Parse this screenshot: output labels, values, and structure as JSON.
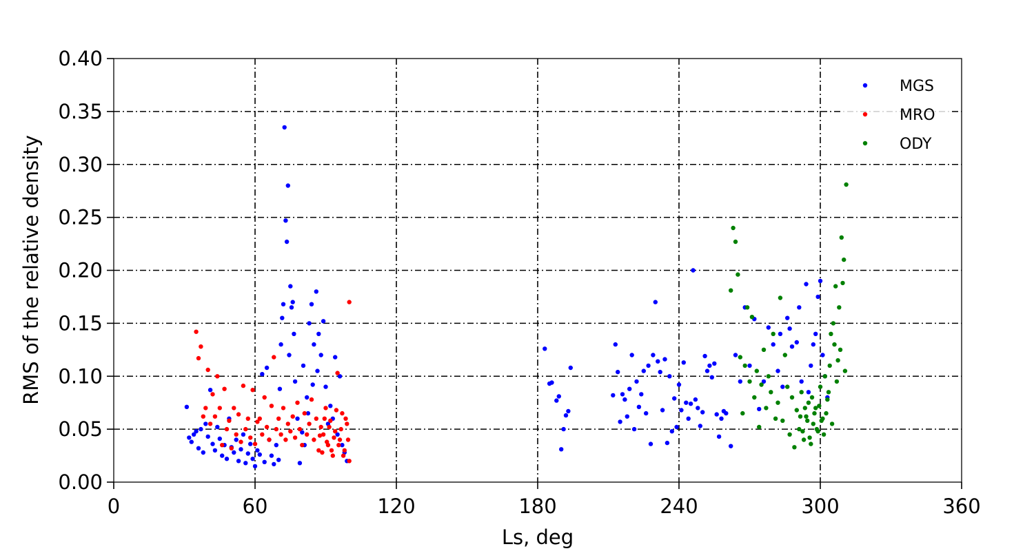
{
  "chart_data": {
    "type": "scatter",
    "xlabel": "Ls, deg",
    "ylabel": "RMS of the relative density",
    "xlim": [
      0,
      360
    ],
    "ylim": [
      0,
      0.4
    ],
    "x_ticks": [
      "0",
      "60",
      "120",
      "180",
      "240",
      "300",
      "360"
    ],
    "x_tick_values": [
      0,
      60,
      120,
      180,
      240,
      300,
      360
    ],
    "y_ticks": [
      "0.00",
      "0.05",
      "0.10",
      "0.15",
      "0.20",
      "0.25",
      "0.30",
      "0.35",
      "0.40"
    ],
    "y_tick_values": [
      0,
      0.05,
      0.1,
      0.15,
      0.2,
      0.25,
      0.3,
      0.35,
      0.4
    ],
    "grid": "dash-dot",
    "legend_position": "top-right",
    "series": [
      {
        "name": "MGS",
        "color": "#0000ff",
        "points": [
          [
            31,
            0.071
          ],
          [
            32,
            0.042
          ],
          [
            33,
            0.038
          ],
          [
            34,
            0.045
          ],
          [
            35,
            0.048
          ],
          [
            36,
            0.032
          ],
          [
            37,
            0.05
          ],
          [
            38,
            0.028
          ],
          [
            39,
            0.055
          ],
          [
            40,
            0.043
          ],
          [
            41,
            0.087
          ],
          [
            42,
            0.036
          ],
          [
            43,
            0.03
          ],
          [
            44,
            0.052
          ],
          [
            45,
            0.041
          ],
          [
            46,
            0.025
          ],
          [
            47,
            0.035
          ],
          [
            48,
            0.022
          ],
          [
            49,
            0.06
          ],
          [
            50,
            0.033
          ],
          [
            51,
            0.028
          ],
          [
            52,
            0.04
          ],
          [
            53,
            0.02
          ],
          [
            54,
            0.031
          ],
          [
            55,
            0.045
          ],
          [
            56,
            0.018
          ],
          [
            57,
            0.027
          ],
          [
            58,
            0.036
          ],
          [
            59,
            0.022
          ],
          [
            60,
            0.015
          ],
          [
            61,
            0.03
          ],
          [
            62,
            0.026
          ],
          [
            63,
            0.102
          ],
          [
            64,
            0.019
          ],
          [
            65,
            0.108
          ],
          [
            66,
            0.04
          ],
          [
            67,
            0.025
          ],
          [
            68,
            0.017
          ],
          [
            69,
            0.035
          ],
          [
            70,
            0.021
          ],
          [
            70.5,
            0.088
          ],
          [
            71,
            0.13
          ],
          [
            71.5,
            0.155
          ],
          [
            72,
            0.168
          ],
          [
            72.5,
            0.335
          ],
          [
            73,
            0.247
          ],
          [
            73.5,
            0.227
          ],
          [
            74,
            0.28
          ],
          [
            74.5,
            0.12
          ],
          [
            75,
            0.185
          ],
          [
            75.5,
            0.165
          ],
          [
            76,
            0.17
          ],
          [
            76.5,
            0.14
          ],
          [
            77,
            0.095
          ],
          [
            78,
            0.06
          ],
          [
            79,
            0.018
          ],
          [
            80,
            0.047
          ],
          [
            81,
            0.035
          ],
          [
            82,
            0.08
          ],
          [
            83,
            0.15
          ],
          [
            84,
            0.168
          ],
          [
            85,
            0.13
          ],
          [
            86,
            0.18
          ],
          [
            87,
            0.14
          ],
          [
            88,
            0.12
          ],
          [
            89,
            0.152
          ],
          [
            90,
            0.09
          ],
          [
            91,
            0.055
          ],
          [
            92,
            0.072
          ],
          [
            93,
            0.06
          ],
          [
            94,
            0.118
          ],
          [
            95,
            0.045
          ],
          [
            96,
            0.1
          ],
          [
            97,
            0.035
          ],
          [
            98,
            0.028
          ],
          [
            99,
            0.02
          ],
          [
            86.5,
            0.105
          ],
          [
            84.5,
            0.092
          ],
          [
            82.5,
            0.065
          ],
          [
            80.5,
            0.11
          ],
          [
            183,
            0.126
          ],
          [
            185,
            0.093
          ],
          [
            186,
            0.094
          ],
          [
            188,
            0.077
          ],
          [
            189,
            0.081
          ],
          [
            190,
            0.031
          ],
          [
            191,
            0.05
          ],
          [
            192,
            0.063
          ],
          [
            193,
            0.067
          ],
          [
            194,
            0.108
          ],
          [
            212,
            0.082
          ],
          [
            213,
            0.13
          ],
          [
            214,
            0.104
          ],
          [
            215,
            0.057
          ],
          [
            216,
            0.083
          ],
          [
            217,
            0.078
          ],
          [
            218,
            0.062
          ],
          [
            219,
            0.088
          ],
          [
            220,
            0.12
          ],
          [
            221,
            0.05
          ],
          [
            222,
            0.095
          ],
          [
            223,
            0.071
          ],
          [
            224,
            0.083
          ],
          [
            225,
            0.105
          ],
          [
            226,
            0.065
          ],
          [
            227,
            0.11
          ],
          [
            228,
            0.036
          ],
          [
            229,
            0.12
          ],
          [
            230,
            0.17
          ],
          [
            231,
            0.114
          ],
          [
            232,
            0.104
          ],
          [
            233,
            0.068
          ],
          [
            234,
            0.116
          ],
          [
            235,
            0.037
          ],
          [
            236,
            0.1
          ],
          [
            237,
            0.048
          ],
          [
            238,
            0.079
          ],
          [
            239,
            0.052
          ],
          [
            240,
            0.092
          ],
          [
            241,
            0.068
          ],
          [
            242,
            0.113
          ],
          [
            243,
            0.075
          ],
          [
            244,
            0.06
          ],
          [
            245,
            0.074
          ],
          [
            246,
            0.2
          ],
          [
            247,
            0.078
          ],
          [
            248,
            0.07
          ],
          [
            249,
            0.053
          ],
          [
            250,
            0.066
          ],
          [
            251,
            0.119
          ],
          [
            252,
            0.105
          ],
          [
            253,
            0.11
          ],
          [
            254,
            0.099
          ],
          [
            255,
            0.112
          ],
          [
            256,
            0.064
          ],
          [
            257,
            0.043
          ],
          [
            258,
            0.06
          ],
          [
            259,
            0.067
          ],
          [
            260,
            0.065
          ],
          [
            262,
            0.034
          ],
          [
            264,
            0.12
          ],
          [
            266,
            0.095
          ],
          [
            268,
            0.165
          ],
          [
            270,
            0.11
          ],
          [
            272,
            0.154
          ],
          [
            274,
            0.069
          ],
          [
            276,
            0.095
          ],
          [
            278,
            0.146
          ],
          [
            280,
            0.13
          ],
          [
            282,
            0.105
          ],
          [
            284,
            0.09
          ],
          [
            286,
            0.155
          ],
          [
            288,
            0.128
          ],
          [
            290,
            0.132
          ],
          [
            292,
            0.095
          ],
          [
            294,
            0.187
          ],
          [
            296,
            0.11
          ],
          [
            298,
            0.14
          ],
          [
            299,
            0.175
          ],
          [
            300,
            0.19
          ],
          [
            301,
            0.12
          ],
          [
            302,
            0.1
          ],
          [
            303,
            0.08
          ],
          [
            297,
            0.13
          ],
          [
            295,
            0.085
          ],
          [
            291,
            0.165
          ],
          [
            287,
            0.145
          ],
          [
            283,
            0.14
          ]
        ]
      },
      {
        "name": "MRO",
        "color": "#ff0000",
        "points": [
          [
            35,
            0.142
          ],
          [
            36,
            0.117
          ],
          [
            37,
            0.128
          ],
          [
            38,
            0.062
          ],
          [
            39,
            0.07
          ],
          [
            40,
            0.106
          ],
          [
            41,
            0.055
          ],
          [
            42,
            0.083
          ],
          [
            43,
            0.062
          ],
          [
            44,
            0.1
          ],
          [
            45,
            0.07
          ],
          [
            46,
            0.035
          ],
          [
            47,
            0.088
          ],
          [
            48,
            0.05
          ],
          [
            49,
            0.058
          ],
          [
            50,
            0.032
          ],
          [
            51,
            0.07
          ],
          [
            52,
            0.045
          ],
          [
            53,
            0.064
          ],
          [
            54,
            0.038
          ],
          [
            55,
            0.091
          ],
          [
            56,
            0.05
          ],
          [
            57,
            0.06
          ],
          [
            58,
            0.042
          ],
          [
            59,
            0.087
          ],
          [
            60,
            0.036
          ],
          [
            61,
            0.057
          ],
          [
            62,
            0.06
          ],
          [
            63,
            0.045
          ],
          [
            64,
            0.08
          ],
          [
            65,
            0.052
          ],
          [
            66,
            0.04
          ],
          [
            67,
            0.072
          ],
          [
            68,
            0.118
          ],
          [
            69,
            0.05
          ],
          [
            70,
            0.06
          ],
          [
            71,
            0.045
          ],
          [
            72,
            0.07
          ],
          [
            73,
            0.04
          ],
          [
            74,
            0.055
          ],
          [
            75,
            0.048
          ],
          [
            76,
            0.062
          ],
          [
            77,
            0.042
          ],
          [
            78,
            0.075
          ],
          [
            79,
            0.05
          ],
          [
            80,
            0.035
          ],
          [
            81,
            0.065
          ],
          [
            82,
            0.045
          ],
          [
            83,
            0.055
          ],
          [
            84,
            0.078
          ],
          [
            85,
            0.04
          ],
          [
            86,
            0.06
          ],
          [
            87,
            0.03
          ],
          [
            88,
            0.052
          ],
          [
            89,
            0.045
          ],
          [
            90,
            0.07
          ],
          [
            91,
            0.035
          ],
          [
            92,
            0.058
          ],
          [
            93,
            0.025
          ],
          [
            94,
            0.048
          ],
          [
            95,
            0.103
          ],
          [
            96,
            0.04
          ],
          [
            97,
            0.065
          ],
          [
            98,
            0.03
          ],
          [
            99,
            0.055
          ],
          [
            100,
            0.17
          ],
          [
            100,
            0.02
          ],
          [
            99.5,
            0.04
          ],
          [
            98.5,
            0.06
          ],
          [
            97.5,
            0.025
          ],
          [
            96.5,
            0.05
          ],
          [
            95.5,
            0.035
          ],
          [
            94.5,
            0.068
          ],
          [
            93.5,
            0.042
          ],
          [
            92.5,
            0.03
          ],
          [
            91.5,
            0.052
          ],
          [
            90.5,
            0.038
          ],
          [
            89.5,
            0.06
          ],
          [
            88.5,
            0.028
          ],
          [
            87.5,
            0.044
          ]
        ]
      },
      {
        "name": "ODY",
        "color": "#008000",
        "points": [
          [
            262,
            0.181
          ],
          [
            263,
            0.24
          ],
          [
            264,
            0.227
          ],
          [
            265,
            0.196
          ],
          [
            266,
            0.118
          ],
          [
            267,
            0.065
          ],
          [
            268,
            0.11
          ],
          [
            269,
            0.165
          ],
          [
            270,
            0.095
          ],
          [
            271,
            0.156
          ],
          [
            272,
            0.08
          ],
          [
            273,
            0.105
          ],
          [
            274,
            0.052
          ],
          [
            275,
            0.092
          ],
          [
            276,
            0.125
          ],
          [
            277,
            0.07
          ],
          [
            278,
            0.1
          ],
          [
            279,
            0.085
          ],
          [
            280,
            0.14
          ],
          [
            281,
            0.06
          ],
          [
            282,
            0.075
          ],
          [
            283,
            0.174
          ],
          [
            284,
            0.058
          ],
          [
            285,
            0.12
          ],
          [
            286,
            0.09
          ],
          [
            287,
            0.045
          ],
          [
            288,
            0.08
          ],
          [
            289,
            0.033
          ],
          [
            290,
            0.068
          ],
          [
            291,
            0.05
          ],
          [
            292,
            0.085
          ],
          [
            293,
            0.04
          ],
          [
            294,
            0.062
          ],
          [
            295,
            0.075
          ],
          [
            296,
            0.036
          ],
          [
            297,
            0.055
          ],
          [
            298,
            0.07
          ],
          [
            299,
            0.048
          ],
          [
            300,
            0.09
          ],
          [
            301,
            0.06
          ],
          [
            302,
            0.1
          ],
          [
            303,
            0.078
          ],
          [
            304,
            0.11
          ],
          [
            305,
            0.055
          ],
          [
            306,
            0.13
          ],
          [
            307,
            0.095
          ],
          [
            308,
            0.165
          ],
          [
            309,
            0.231
          ],
          [
            310,
            0.21
          ],
          [
            311,
            0.281
          ],
          [
            305.5,
            0.15
          ],
          [
            306.5,
            0.185
          ],
          [
            307.5,
            0.115
          ],
          [
            308.5,
            0.125
          ],
          [
            309.5,
            0.188
          ],
          [
            310.5,
            0.105
          ],
          [
            304.5,
            0.14
          ],
          [
            303.5,
            0.085
          ],
          [
            302.5,
            0.065
          ],
          [
            301.5,
            0.045
          ],
          [
            300.5,
            0.058
          ],
          [
            299.5,
            0.072
          ],
          [
            298.5,
            0.05
          ],
          [
            297.5,
            0.065
          ],
          [
            296.5,
            0.08
          ],
          [
            295.5,
            0.042
          ],
          [
            294.5,
            0.058
          ],
          [
            293.5,
            0.07
          ],
          [
            292.5,
            0.048
          ],
          [
            291.5,
            0.062
          ]
        ]
      }
    ]
  }
}
